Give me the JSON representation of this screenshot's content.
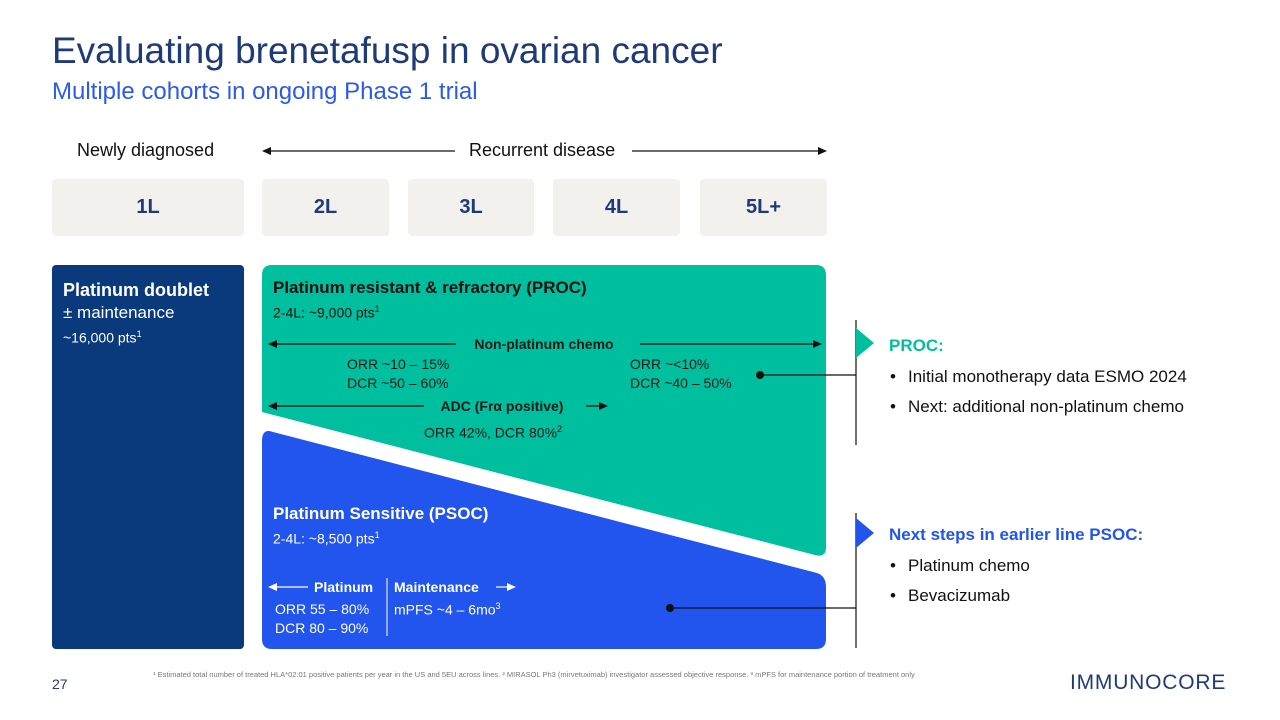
{
  "title": "Evaluating brenetafusp in ovarian cancer",
  "subtitle": "Multiple cohorts in ongoing Phase 1 trial",
  "headers": {
    "newly": "Newly diagnosed",
    "recurrent": "Recurrent disease"
  },
  "lines": [
    "1L",
    "2L",
    "3L",
    "4L",
    "5L+"
  ],
  "first_line": {
    "title": "Platinum doublet",
    "sub": "± maintenance",
    "pts": "~16,000 pts",
    "sup": "1"
  },
  "proc": {
    "title": "Platinum resistant & refractory (PROC)",
    "pts": "2-4L: ~9,000 pts",
    "pts_sup": "1",
    "nonplat_label": "Non-platinum chemo",
    "orr_left": "ORR ~10 – 15%",
    "dcr_left": "DCR ~50 – 60%",
    "orr_right": "ORR ~<10%",
    "dcr_right": "DCR ~40 – 50%",
    "adc_label": "ADC (Frα positive)",
    "adc_result": "ORR 42%, DCR 80%",
    "adc_sup": "2"
  },
  "psoc": {
    "title": "Platinum Sensitive (PSOC)",
    "pts": "2-4L: ~8,500 pts",
    "pts_sup": "1",
    "platinum_label": "Platinum",
    "maint_label": "Maintenance",
    "orr": "ORR 55 – 80%",
    "dcr": "DCR 80 – 90%",
    "mpfs": "mPFS ~4 – 6mo",
    "mpfs_sup": "3"
  },
  "callout_proc": {
    "heading": "PROC:",
    "bullets": [
      "Initial monotherapy data ESMO 2024",
      "Next: additional non-platinum chemo"
    ]
  },
  "callout_psoc": {
    "heading": "Next steps in earlier line PSOC:",
    "bullets": [
      "Platinum chemo",
      "Bevacizumab"
    ]
  },
  "page_number": "27",
  "footnote": "¹ Estimated total number of treated HLA*02:01 positive patients per year in the US and 5EU across lines. ² MIRASOL Ph3 (mirvetuximab) investigator assessed objective response. ³ mPFS for maintenance portion of treatment only",
  "logo": "IMMUNOCORE",
  "colors": {
    "navy": "#0b3a7c",
    "teal": "#00bf9e",
    "blue": "#2155ee",
    "title": "#1f3a78"
  }
}
